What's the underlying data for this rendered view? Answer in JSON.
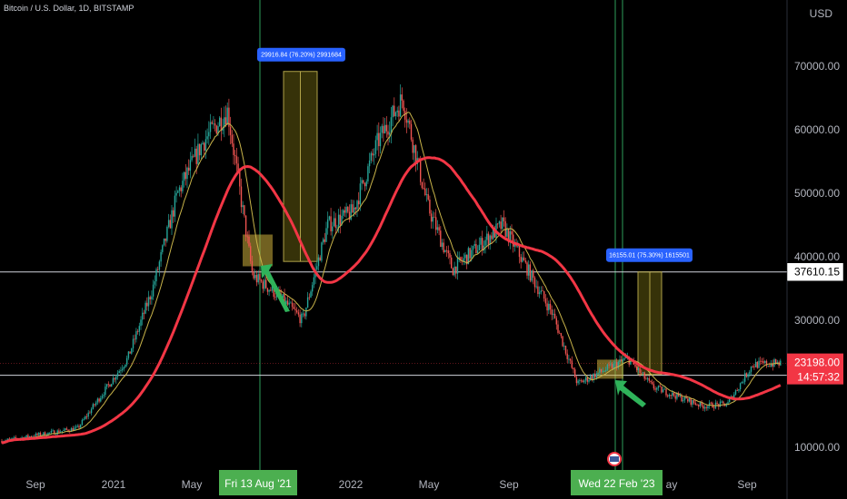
{
  "header": {
    "symbol_title": "Bitcoin / U.S. Dollar, 1D, BITSTAMP",
    "currency": "USD"
  },
  "chart_data": {
    "type": "candlestick",
    "title": "Bitcoin / U.S. Dollar, 1D, BITSTAMP",
    "y_unit": "USD",
    "y_ticks": [
      "70000.00",
      "60000.00",
      "50000.00",
      "40000.00",
      "30000.00",
      "10000.00"
    ],
    "x_ticks": [
      "Sep",
      "2021",
      "May",
      "2022",
      "May",
      "Sep",
      "ay",
      "Sep"
    ],
    "ylim": [
      7500,
      77000
    ],
    "price_series_approx": [
      {
        "date": "2020-07",
        "close": 11000
      },
      {
        "date": "2020-10",
        "close": 13000
      },
      {
        "date": "2020-12",
        "close": 24000
      },
      {
        "date": "2021-01",
        "close": 35000
      },
      {
        "date": "2021-02",
        "close": 50000
      },
      {
        "date": "2021-03",
        "close": 58000
      },
      {
        "date": "2021-04",
        "close": 63000
      },
      {
        "date": "2021-05",
        "close": 37000
      },
      {
        "date": "2021-06",
        "close": 34000
      },
      {
        "date": "2021-07",
        "close": 30000
      },
      {
        "date": "2021-08",
        "close": 45000
      },
      {
        "date": "2021-09",
        "close": 47000
      },
      {
        "date": "2021-10",
        "close": 58000
      },
      {
        "date": "2021-11",
        "close": 65000
      },
      {
        "date": "2021-12",
        "close": 48000
      },
      {
        "date": "2022-01",
        "close": 38000
      },
      {
        "date": "2022-03",
        "close": 45000
      },
      {
        "date": "2022-05",
        "close": 31000
      },
      {
        "date": "2022-06",
        "close": 20000
      },
      {
        "date": "2022-08",
        "close": 24000
      },
      {
        "date": "2022-09",
        "close": 19500
      },
      {
        "date": "2022-11",
        "close": 16500
      },
      {
        "date": "2022-12",
        "close": 16800
      },
      {
        "date": "2023-01",
        "close": 23000
      },
      {
        "date": "2023-02",
        "close": 23200
      }
    ],
    "moving_averages": [
      {
        "color": "#f23645",
        "description": "thick red long-period moving average"
      },
      {
        "color": "#c9b44a",
        "description": "thin yellow short-period moving average"
      }
    ],
    "horizontal_lines": [
      {
        "price": 37610.15,
        "label": "37610.15"
      },
      {
        "price": 21345.98,
        "label": "21345.98"
      }
    ],
    "last_price": {
      "price": "23198.00",
      "countdown": "14:57:32"
    },
    "vertical_markers": [
      {
        "date_label": "Fri 13 Aug '21"
      },
      {
        "date_label": "Wed 22 Feb '23"
      }
    ],
    "measure_boxes": [
      {
        "label": "29916.84 (76.20%) 2991684",
        "low": 39260,
        "high": 69180
      },
      {
        "label": "16155.01 (75.30%) 1615501",
        "low": 21455,
        "high": 37610
      }
    ],
    "highlight_zones": [
      {
        "low": 38500,
        "high": 43500
      },
      {
        "low": 20800,
        "high": 23800
      }
    ]
  }
}
